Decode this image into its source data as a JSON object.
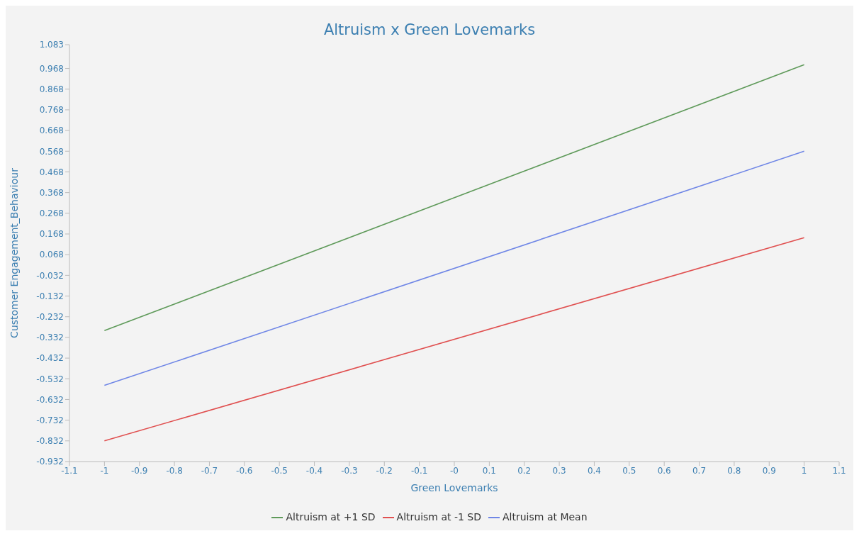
{
  "chart_data": {
    "type": "line",
    "title": "Altruism x Green Lovemarks",
    "xlabel": "Green Lovemarks",
    "ylabel": "Customer Engagement_Behaviour",
    "x": [
      -1,
      1
    ],
    "series": [
      {
        "name": "Altruism at -1 SD",
        "color": "#e05050",
        "values": [
          -0.832,
          0.15
        ]
      },
      {
        "name": "Altruism at Mean",
        "color": "#6f86e6",
        "values": [
          -0.564,
          0.568
        ]
      },
      {
        "name": "Altruism at +1 SD",
        "color": "#5f9a5a",
        "values": [
          -0.299,
          0.986
        ]
      }
    ],
    "xlim": [
      -1.1,
      1.1
    ],
    "xticks": [
      -1.1,
      -1,
      -0.9,
      -0.8,
      -0.7,
      -0.6,
      -0.5,
      -0.4,
      -0.3,
      -0.2,
      -0.1,
      {
        "value": 0,
        "label": "-0"
      },
      0.1,
      0.2,
      0.3,
      0.4,
      0.5,
      0.6,
      0.7,
      0.8,
      0.9,
      1,
      1.1
    ],
    "ylim": [
      -0.932,
      1.083
    ],
    "yticks": [
      -0.932,
      -0.832,
      -0.732,
      -0.632,
      -0.532,
      -0.432,
      -0.332,
      -0.232,
      -0.132,
      -0.032,
      0.068,
      0.168,
      0.268,
      0.368,
      0.468,
      0.568,
      0.668,
      0.768,
      0.868,
      0.968,
      1.083
    ],
    "grid": false,
    "legend": "bottom",
    "marker": "none",
    "line_style": "solid"
  }
}
